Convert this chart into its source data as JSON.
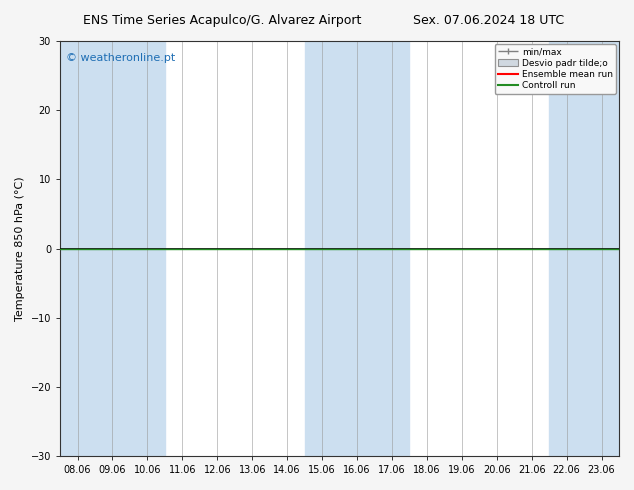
{
  "title_left": "ENS Time Series Acapulco/G. Alvarez Airport",
  "title_right": "Sex. 07.06.2024 18 UTC",
  "xlabel_ticks": [
    "08.06",
    "09.06",
    "10.06",
    "11.06",
    "12.06",
    "13.06",
    "14.06",
    "15.06",
    "16.06",
    "17.06",
    "18.06",
    "19.06",
    "20.06",
    "21.06",
    "22.06",
    "23.06"
  ],
  "ylabel": "Temperature 850 hPa (°C)",
  "ylim": [
    -30,
    30
  ],
  "yticks": [
    -30,
    -20,
    -10,
    0,
    10,
    20,
    30
  ],
  "background_color": "#f5f5f5",
  "plot_bg_color": "#ffffff",
  "shaded_band_color": "#ccdff0",
  "shaded_columns": [
    0,
    2,
    7,
    8,
    14,
    15
  ],
  "watermark": "© weatheronline.pt",
  "watermark_color": "#1e6eb4",
  "legend_entries": [
    "min/max",
    "Desvio padr tilde;o",
    "Ensemble mean run",
    "Controll run"
  ],
  "zero_line_color": "#000000",
  "control_run_color": "#228b22",
  "ensemble_mean_color": "#ff0000",
  "title_fontsize": 9,
  "tick_fontsize": 7,
  "ylabel_fontsize": 8,
  "watermark_fontsize": 8
}
